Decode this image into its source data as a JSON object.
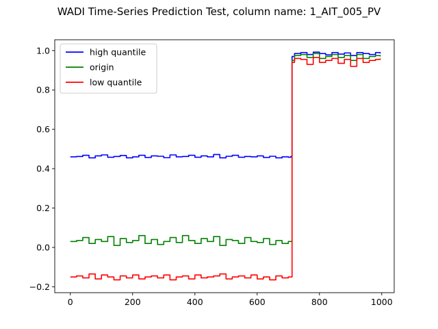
{
  "chart_data": {
    "type": "line",
    "title": "WADI Time-Series Prediction Test, column name: 1_AIT_005_PV",
    "xlabel": "",
    "ylabel": "",
    "xlim": [
      -50,
      1040
    ],
    "ylim": [
      -0.23,
      1.055
    ],
    "x_ticks": [
      0,
      200,
      400,
      600,
      800,
      1000
    ],
    "y_ticks": [
      -0.2,
      0.0,
      0.2,
      0.4,
      0.6,
      0.8,
      1.0
    ],
    "x_tick_labels": [
      "0",
      "200",
      "400",
      "600",
      "800",
      "1000"
    ],
    "y_tick_labels": [
      "−0.2",
      "0.0",
      "0.2",
      "0.4",
      "0.6",
      "0.8",
      "1.0"
    ],
    "grid": false,
    "legend_position": "top-left",
    "series": [
      {
        "name": "high quantile",
        "color": "#0000ff",
        "x": [
          0,
          20,
          40,
          60,
          80,
          100,
          120,
          140,
          160,
          180,
          200,
          220,
          240,
          260,
          280,
          300,
          320,
          340,
          360,
          380,
          400,
          420,
          440,
          460,
          480,
          500,
          520,
          540,
          560,
          580,
          600,
          620,
          640,
          660,
          680,
          700,
          708,
          712,
          720,
          740,
          760,
          780,
          800,
          820,
          840,
          860,
          880,
          900,
          920,
          940,
          960,
          980,
          995
        ],
        "y": [
          0.46,
          0.462,
          0.468,
          0.455,
          0.465,
          0.47,
          0.458,
          0.462,
          0.467,
          0.455,
          0.46,
          0.468,
          0.457,
          0.465,
          0.463,
          0.456,
          0.47,
          0.46,
          0.462,
          0.468,
          0.458,
          0.465,
          0.46,
          0.472,
          0.455,
          0.463,
          0.468,
          0.458,
          0.462,
          0.46,
          0.465,
          0.457,
          0.463,
          0.455,
          0.46,
          0.458,
          0.462,
          0.97,
          0.985,
          0.99,
          0.98,
          0.992,
          0.985,
          0.978,
          0.99,
          0.982,
          0.988,
          0.975,
          0.99,
          0.985,
          0.98,
          0.99,
          0.985
        ]
      },
      {
        "name": "origin",
        "color": "#008000",
        "x": [
          0,
          20,
          40,
          60,
          80,
          100,
          120,
          140,
          160,
          180,
          200,
          220,
          240,
          260,
          280,
          300,
          320,
          340,
          360,
          380,
          400,
          420,
          440,
          460,
          480,
          500,
          520,
          540,
          560,
          580,
          600,
          620,
          640,
          660,
          680,
          700,
          708,
          712,
          720,
          740,
          760,
          780,
          800,
          820,
          840,
          860,
          880,
          900,
          920,
          940,
          960,
          980,
          995
        ],
        "y": [
          0.03,
          0.035,
          0.05,
          0.02,
          0.04,
          0.03,
          0.055,
          0.01,
          0.045,
          0.025,
          0.035,
          0.06,
          0.02,
          0.04,
          0.015,
          0.03,
          0.05,
          0.025,
          0.06,
          0.035,
          0.02,
          0.045,
          0.03,
          0.055,
          0.01,
          0.04,
          0.035,
          0.02,
          0.05,
          0.03,
          0.025,
          0.045,
          0.015,
          0.035,
          0.02,
          0.03,
          0.03,
          0.95,
          0.975,
          0.98,
          0.965,
          0.985,
          0.96,
          0.97,
          0.98,
          0.965,
          0.975,
          0.95,
          0.98,
          0.96,
          0.97,
          0.975,
          0.97
        ]
      },
      {
        "name": "low quantile",
        "color": "#ff0000",
        "x": [
          0,
          20,
          40,
          60,
          80,
          100,
          120,
          140,
          160,
          180,
          200,
          220,
          240,
          260,
          280,
          300,
          320,
          340,
          360,
          380,
          400,
          420,
          440,
          460,
          480,
          500,
          520,
          540,
          560,
          580,
          600,
          620,
          640,
          660,
          680,
          700,
          708,
          712,
          720,
          740,
          760,
          780,
          800,
          820,
          840,
          860,
          880,
          900,
          920,
          940,
          960,
          980,
          995
        ],
        "y": [
          -0.15,
          -0.145,
          -0.155,
          -0.135,
          -0.16,
          -0.14,
          -0.15,
          -0.165,
          -0.145,
          -0.155,
          -0.14,
          -0.16,
          -0.15,
          -0.145,
          -0.155,
          -0.14,
          -0.165,
          -0.15,
          -0.145,
          -0.16,
          -0.14,
          -0.155,
          -0.15,
          -0.145,
          -0.135,
          -0.16,
          -0.15,
          -0.145,
          -0.155,
          -0.14,
          -0.16,
          -0.15,
          -0.165,
          -0.145,
          -0.155,
          -0.15,
          -0.15,
          0.94,
          0.96,
          0.955,
          0.93,
          0.965,
          0.94,
          0.95,
          0.96,
          0.935,
          0.955,
          0.92,
          0.96,
          0.94,
          0.95,
          0.955,
          0.96
        ]
      }
    ]
  }
}
